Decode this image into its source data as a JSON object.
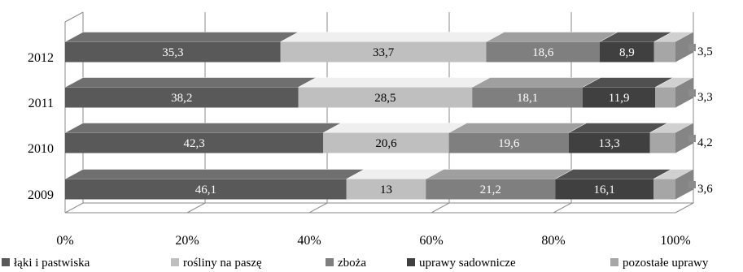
{
  "chart_data": {
    "type": "bar",
    "orientation": "horizontal",
    "stacked": true,
    "normalized_percent": true,
    "categories": [
      "2012",
      "2011",
      "2010",
      "2009"
    ],
    "series": [
      {
        "name": "łąki i pastwiska",
        "values": [
          35.3,
          38.2,
          42.3,
          46.1
        ],
        "color": "#595959"
      },
      {
        "name": "rośliny na paszę",
        "values": [
          33.7,
          28.5,
          20.6,
          13
        ],
        "color": "#bfbfbf"
      },
      {
        "name": "zboża",
        "values": [
          18.6,
          18.1,
          19.6,
          21.2
        ],
        "color": "#7f7f7f"
      },
      {
        "name": "uprawy sadownicze",
        "values": [
          8.9,
          11.9,
          13.3,
          16.1
        ],
        "color": "#404040"
      },
      {
        "name": "pozostałe uprawy",
        "values": [
          3.5,
          3.3,
          4.2,
          3.6
        ],
        "color": "#a6a6a6"
      }
    ],
    "x_ticks": [
      "0%",
      "20%",
      "40%",
      "60%",
      "80%",
      "100%"
    ],
    "xlim": [
      0,
      100
    ],
    "grid": "vertical",
    "legend": "bottom",
    "title": "",
    "xlabel": "",
    "ylabel": ""
  }
}
